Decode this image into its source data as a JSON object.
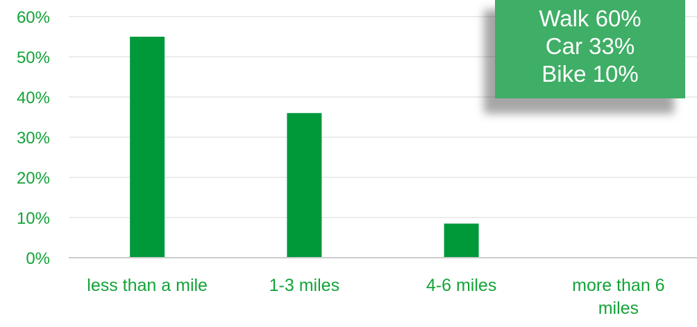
{
  "colors": {
    "bar": "#00993a",
    "text": "#13a338",
    "axis": "#cccccc",
    "grid": "#e6e6e6",
    "callout_bg": "#3fae66",
    "callout_text": "#ffffff"
  },
  "chart_data": {
    "type": "bar",
    "categories": [
      "less than a mile",
      "1-3 miles",
      "4-6 miles",
      "more than 6 miles"
    ],
    "category_lines": [
      [
        "less than a mile"
      ],
      [
        "1-3 miles"
      ],
      [
        "4-6 miles"
      ],
      [
        "more than 6",
        "miles"
      ]
    ],
    "values": [
      55,
      36,
      8.5,
      0
    ],
    "ylim": [
      0,
      60
    ],
    "yticks": [
      0,
      10,
      20,
      30,
      40,
      50,
      60
    ],
    "ytick_labels": [
      "0%",
      "10%",
      "20%",
      "30%",
      "40%",
      "50%",
      "60%"
    ],
    "grid": true,
    "title": "",
    "xlabel": "",
    "ylabel": ""
  },
  "callout": {
    "lines": [
      "Walk 60%",
      "Car 33%",
      "Bike 10%"
    ]
  }
}
